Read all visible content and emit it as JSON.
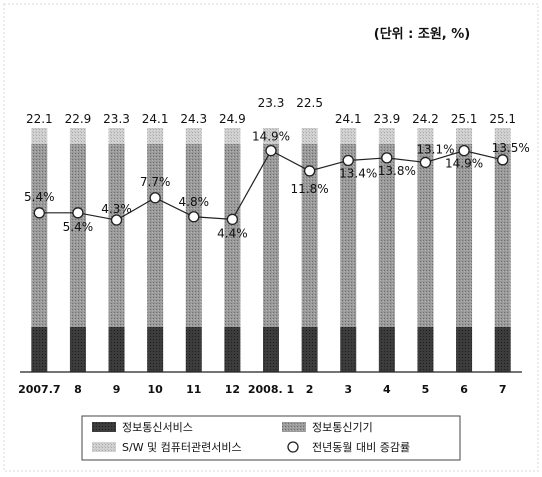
{
  "unit_note": "(단위 : 조원, %)",
  "colors": {
    "bar_bottom": "#3a3a3a",
    "bar_middle": "#8c8c8c",
    "bar_top": "#c6c6c6",
    "line": "#222222",
    "marker_fill": "#ffffff"
  },
  "chart_data": {
    "type": "bar",
    "stacked": true,
    "categories": [
      "2007.7",
      "8",
      "9",
      "10",
      "11",
      "12",
      "2008. 1",
      "2",
      "3",
      "4",
      "5",
      "6",
      "7"
    ],
    "series": [
      {
        "name": "정보통신서비스"
      },
      {
        "name": "정보통신기기"
      },
      {
        "name": "S/W 및 컴퓨터관련서비스"
      }
    ],
    "totals": [
      22.1,
      22.9,
      23.3,
      24.1,
      24.3,
      24.9,
      23.3,
      22.5,
      24.1,
      23.9,
      24.2,
      25.1,
      25.1
    ],
    "totals_labels": [
      "22.1",
      "22.9",
      "23.3",
      "24.1",
      "24.3",
      "24.9",
      "23.3",
      "22.5",
      "24.1",
      "23.9",
      "24.2",
      "25.1",
      "25.1"
    ],
    "line": {
      "name": "전년동월 대비 증감률",
      "values": [
        5.4,
        5.4,
        4.3,
        7.7,
        4.8,
        4.4,
        14.9,
        11.8,
        13.4,
        13.8,
        13.1,
        14.9,
        13.5
      ],
      "labels": [
        "5.4%",
        "5.4%",
        "4.3%",
        "7.7%",
        "4.8%",
        "4.4%",
        "14.9%",
        "11.8%",
        "13.4%",
        "13.8%",
        "13.1%",
        "14.9%",
        "13.5%"
      ]
    },
    "legend": {
      "position": "bottom",
      "items": [
        {
          "label": "정보통신서비스",
          "marker": "bar_bottom"
        },
        {
          "label": "정보통신기기",
          "marker": "bar_middle"
        },
        {
          "label": "S/W 및 컴퓨터관련서비스",
          "marker": "bar_top"
        },
        {
          "label": "전년동월 대비 증감률",
          "marker": "circle"
        }
      ]
    }
  }
}
